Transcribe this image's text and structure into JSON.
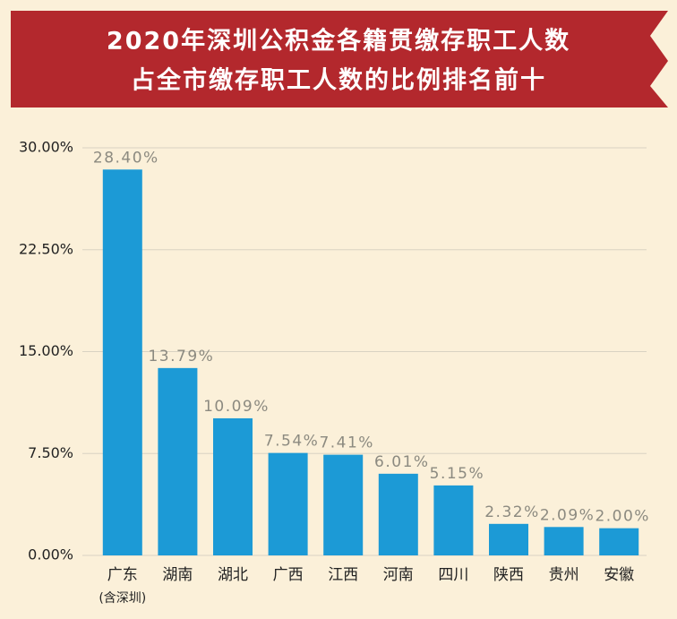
{
  "chart_data": {
    "type": "bar",
    "title": [
      "2020年深圳公积金各籍贯缴存职工人数",
      "占全市缴存职工人数的比例排名前十"
    ],
    "categories": [
      "广东",
      "湖南",
      "湖北",
      "广西",
      "江西",
      "河南",
      "四川",
      "陕西",
      "贵州",
      "安徽"
    ],
    "category_subtitles": [
      "(含深圳)",
      null,
      null,
      null,
      null,
      null,
      null,
      null,
      null,
      null
    ],
    "values": [
      28.4,
      13.79,
      10.09,
      7.54,
      7.41,
      6.01,
      5.15,
      2.32,
      2.09,
      2.0
    ],
    "value_labels": [
      "28.40%",
      "13.79%",
      "10.09%",
      "7.54%",
      "7.41%",
      "6.01%",
      "5.15%",
      "2.32%",
      "2.09%",
      "2.00%"
    ],
    "color": "#1c9ad6",
    "ylim": [
      0,
      30
    ],
    "yticks": [
      {
        "value": 0,
        "label": "0.00%"
      },
      {
        "value": 7.5,
        "label": "7.50%"
      },
      {
        "value": 15,
        "label": "15.00%"
      },
      {
        "value": 22.5,
        "label": "22.50%"
      },
      {
        "value": 30,
        "label": "30.00%"
      }
    ],
    "grid": true
  }
}
